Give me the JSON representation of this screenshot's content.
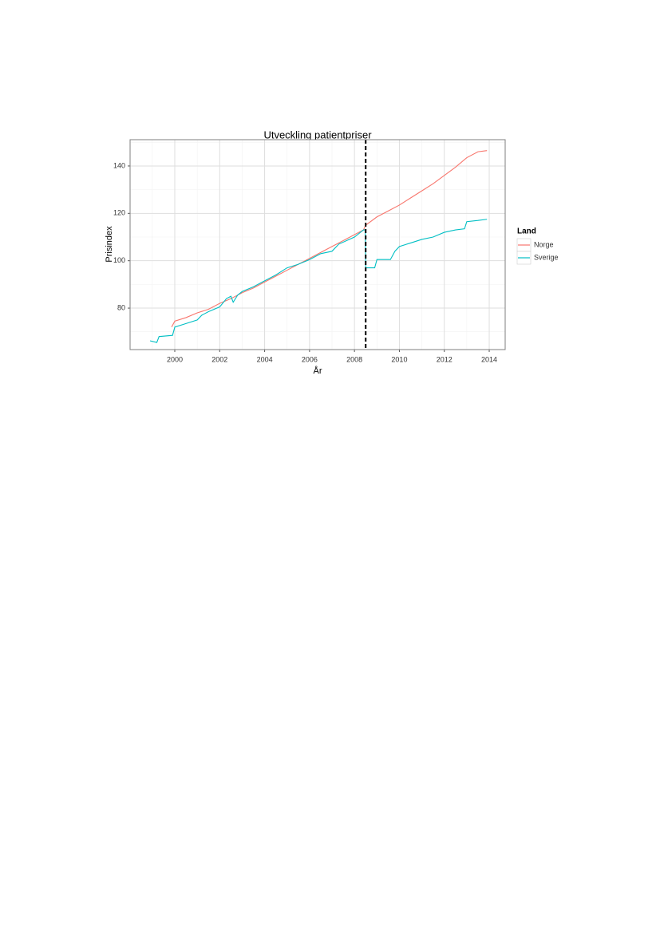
{
  "chart_data": {
    "type": "line",
    "title": "Utveckling patientpriser",
    "x_label": "År",
    "y_label": "Prisindex",
    "xlim": [
      1998.01,
      2014.71
    ],
    "ylim": [
      62.5,
      151.1
    ],
    "xticks": [
      2000,
      2002,
      2004,
      2006,
      2008,
      2010,
      2012,
      2014
    ],
    "yticks": [
      80,
      100,
      120,
      140
    ],
    "grid": true,
    "legend_title": "Land",
    "legend_position": "right",
    "vline": 2008.5,
    "vline_color": "#000000",
    "series": [
      {
        "name": "Norge",
        "color": "#f8766d",
        "x": [
          1999.86,
          2000,
          2000.5,
          2001,
          2001.5,
          2002,
          2002.5,
          2003,
          2003.5,
          2004,
          2004.5,
          2005,
          2005.5,
          2006,
          2006.5,
          2007,
          2007.5,
          2008,
          2008.4,
          2008.5,
          2009,
          2009.5,
          2010,
          2010.5,
          2011,
          2011.5,
          2012,
          2012.5,
          2013,
          2013.5,
          2013.9
        ],
        "values": [
          72,
          74.5,
          76,
          78,
          79.5,
          82,
          84,
          86.5,
          88.5,
          91,
          93.5,
          96,
          98.5,
          101,
          103.5,
          106,
          108.5,
          111,
          113,
          115,
          118.5,
          121,
          123.5,
          126.5,
          129.5,
          132.5,
          136,
          139.5,
          143.5,
          146,
          146.5
        ]
      },
      {
        "name": "Sverige",
        "color": "#00bfc4",
        "x": [
          1998.9,
          1999.2,
          1999.3,
          1999.9,
          2000,
          2000.5,
          2001,
          2001.2,
          2001.5,
          2002,
          2002.3,
          2002.5,
          2002.6,
          2002.8,
          2003,
          2003.5,
          2004,
          2004.5,
          2005,
          2005.5,
          2006,
          2006.5,
          2007,
          2007.3,
          2008,
          2008.4,
          2008.48,
          2008.5,
          2008.9,
          2009,
          2009.6,
          2009.8,
          2010,
          2010.5,
          2011,
          2011.5,
          2012,
          2012.5,
          2012.9,
          2013,
          2013.5,
          2013.9
        ],
        "values": [
          66.2,
          65.5,
          68,
          68.5,
          72,
          73.5,
          75,
          77,
          78.5,
          80.5,
          84,
          85,
          82.5,
          85.5,
          87,
          89,
          91.5,
          94,
          97,
          98.5,
          100.5,
          103,
          104,
          107,
          110,
          113,
          113,
          97,
          97,
          100.5,
          100.5,
          104,
          106,
          107.5,
          109,
          110,
          112,
          113,
          113.5,
          116.5,
          117,
          117.5
        ]
      }
    ]
  }
}
